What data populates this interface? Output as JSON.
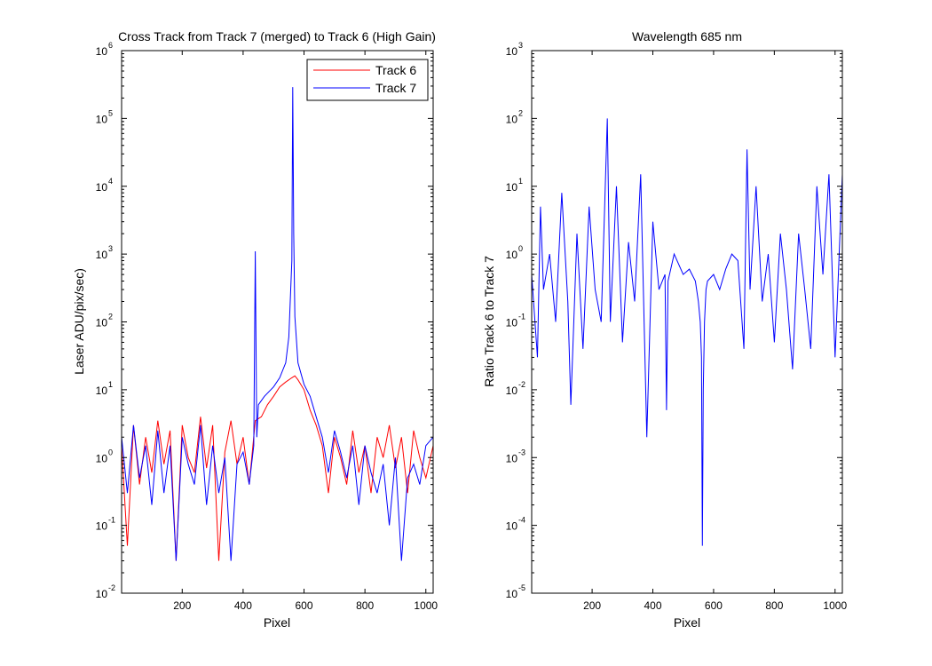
{
  "chart_data": [
    {
      "type": "line",
      "title": "Cross Track from Track 7 (merged) to Track 6 (High Gain)",
      "xlabel": "Pixel",
      "ylabel": "Laser ADU/pix/sec)",
      "xlim": [
        1,
        1024
      ],
      "ylim": [
        0.01,
        1000000
      ],
      "yscale": "log",
      "xticks": [
        200,
        400,
        600,
        800,
        1000
      ],
      "yticks": [
        {
          "base": "10",
          "exp": "-2",
          "value": 0.01
        },
        {
          "base": "10",
          "exp": "-1",
          "value": 0.1
        },
        {
          "base": "10",
          "exp": "0",
          "value": 1
        },
        {
          "base": "10",
          "exp": "1",
          "value": 10
        },
        {
          "base": "10",
          "exp": "2",
          "value": 100
        },
        {
          "base": "10",
          "exp": "3",
          "value": 1000
        },
        {
          "base": "10",
          "exp": "4",
          "value": 10000
        },
        {
          "base": "10",
          "exp": "5",
          "value": 100000
        },
        {
          "base": "10",
          "exp": "6",
          "value": 1000000
        }
      ],
      "grid": false,
      "legend_position": "top-right",
      "series": [
        {
          "name": "Track 6",
          "color": "#ff0000",
          "x": [
            1,
            20,
            40,
            60,
            80,
            100,
            120,
            140,
            160,
            180,
            200,
            220,
            240,
            260,
            280,
            300,
            320,
            340,
            360,
            380,
            400,
            420,
            440,
            460,
            480,
            500,
            520,
            540,
            560,
            570,
            580,
            600,
            620,
            640,
            660,
            680,
            700,
            720,
            740,
            760,
            780,
            800,
            820,
            840,
            860,
            880,
            900,
            920,
            940,
            960,
            980,
            1000,
            1024
          ],
          "values": [
            1.5,
            0.05,
            3,
            0.4,
            2,
            0.6,
            3.5,
            0.8,
            2.5,
            0.03,
            3,
            1,
            0.6,
            4,
            0.7,
            3,
            0.03,
            1.2,
            3.5,
            0.8,
            2,
            0.4,
            3.5,
            4,
            6,
            8,
            11,
            13,
            15,
            16,
            14,
            10,
            5,
            3,
            1.5,
            0.3,
            2,
            1,
            0.4,
            2.5,
            0.6,
            1.5,
            0.3,
            2,
            1,
            3,
            0.7,
            2,
            0.3,
            2.5,
            1,
            0.5,
            1.5
          ]
        },
        {
          "name": "Track 7",
          "color": "#0000ff",
          "x": [
            1,
            20,
            40,
            60,
            80,
            100,
            120,
            140,
            160,
            180,
            200,
            220,
            240,
            260,
            280,
            300,
            320,
            340,
            360,
            380,
            400,
            420,
            435,
            440,
            445,
            450,
            470,
            500,
            520,
            540,
            550,
            560,
            563,
            566,
            570,
            580,
            600,
            620,
            640,
            660,
            680,
            700,
            720,
            740,
            760,
            780,
            800,
            820,
            840,
            860,
            880,
            900,
            920,
            940,
            960,
            980,
            1000,
            1024
          ],
          "values": [
            2,
            0.3,
            3,
            0.5,
            1.5,
            0.2,
            2.5,
            0.3,
            1.5,
            0.03,
            2,
            0.8,
            0.4,
            3,
            0.2,
            1.5,
            0.3,
            1,
            0.03,
            0.8,
            1.2,
            0.4,
            1.5,
            1100,
            2,
            6,
            8,
            11,
            15,
            25,
            60,
            800,
            290000,
            2000,
            120,
            25,
            12,
            8,
            4,
            2,
            0.6,
            2.5,
            1.2,
            0.5,
            1.5,
            0.2,
            1.5,
            0.6,
            0.3,
            0.8,
            0.1,
            1,
            0.03,
            0.5,
            0.8,
            0.4,
            1.5,
            2
          ]
        }
      ]
    },
    {
      "type": "line",
      "title": "Wavelength 685 nm",
      "xlabel": "Pixel",
      "ylabel": "Ratio Track 6 to Track 7",
      "xlim": [
        1,
        1024
      ],
      "ylim": [
        1e-05,
        1000
      ],
      "yscale": "log",
      "xticks": [
        200,
        400,
        600,
        800,
        1000
      ],
      "yticks": [
        {
          "base": "10",
          "exp": "-5",
          "value": 1e-05
        },
        {
          "base": "10",
          "exp": "-4",
          "value": 0.0001
        },
        {
          "base": "10",
          "exp": "-3",
          "value": 0.001
        },
        {
          "base": "10",
          "exp": "-2",
          "value": 0.01
        },
        {
          "base": "10",
          "exp": "-1",
          "value": 0.1
        },
        {
          "base": "10",
          "exp": "0",
          "value": 1
        },
        {
          "base": "10",
          "exp": "1",
          "value": 10
        },
        {
          "base": "10",
          "exp": "2",
          "value": 100
        },
        {
          "base": "10",
          "exp": "3",
          "value": 1000
        }
      ],
      "grid": false,
      "series": [
        {
          "color": "#0000ff",
          "x": [
            1,
            20,
            30,
            40,
            60,
            80,
            100,
            120,
            130,
            150,
            170,
            190,
            210,
            230,
            250,
            260,
            280,
            300,
            320,
            340,
            360,
            380,
            400,
            420,
            440,
            445,
            450,
            470,
            500,
            520,
            540,
            550,
            556,
            560,
            563,
            566,
            570,
            575,
            580,
            600,
            620,
            640,
            660,
            680,
            700,
            710,
            720,
            740,
            760,
            780,
            800,
            820,
            840,
            860,
            880,
            900,
            920,
            940,
            960,
            980,
            1000,
            1024
          ],
          "values": [
            0.5,
            0.03,
            5,
            0.3,
            1,
            0.1,
            8,
            0.2,
            0.006,
            2,
            0.04,
            5,
            0.3,
            0.1,
            100,
            0.1,
            10,
            0.05,
            1.5,
            0.2,
            15,
            0.002,
            3,
            0.3,
            0.5,
            0.005,
            0.4,
            1,
            0.5,
            0.6,
            0.4,
            0.2,
            0.1,
            0.03,
            5e-05,
            0.01,
            0.1,
            0.3,
            0.4,
            0.5,
            0.3,
            0.6,
            1,
            0.8,
            0.04,
            35,
            0.3,
            10,
            0.2,
            1,
            0.05,
            2,
            0.3,
            0.02,
            2,
            0.3,
            0.04,
            10,
            0.5,
            15,
            0.03,
            15
          ]
        }
      ]
    }
  ]
}
